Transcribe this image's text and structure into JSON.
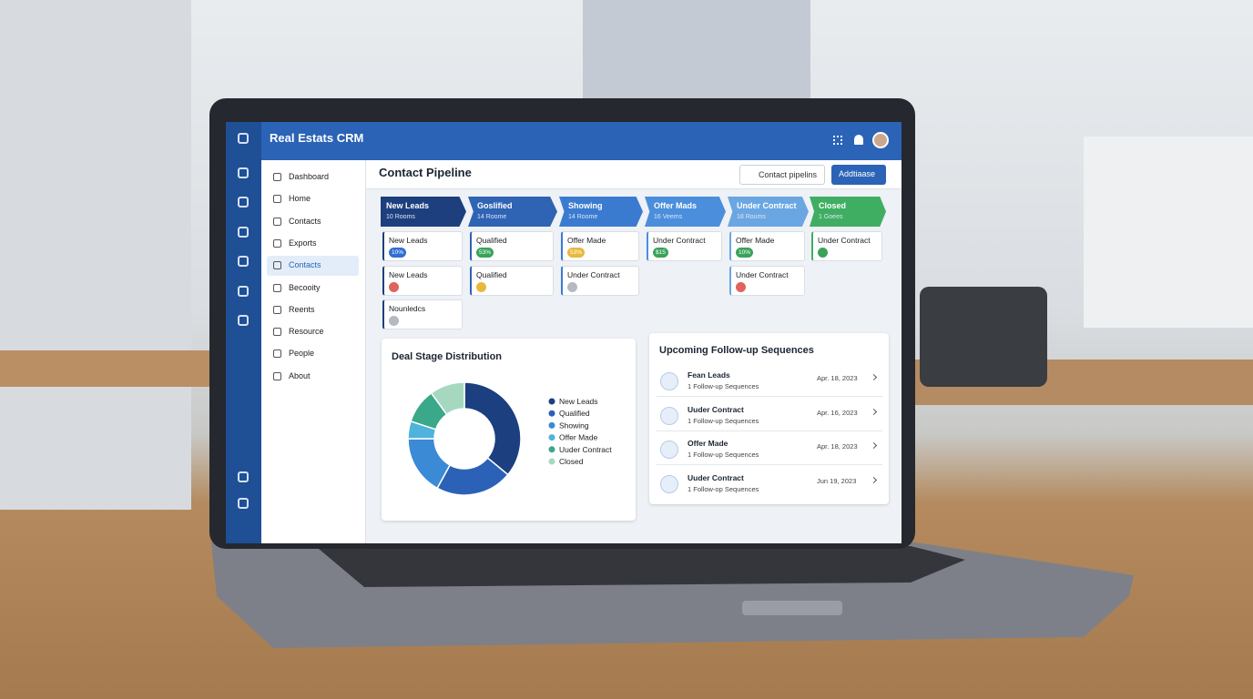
{
  "app": {
    "title": "Real Estats CRM"
  },
  "sidebar": {
    "items": [
      "Dashboard",
      "Home",
      "Contacts",
      "Exports",
      "Contacts",
      "Becooity",
      "Reents",
      "Resource",
      "People",
      "About"
    ],
    "active": 4
  },
  "page": {
    "title": "Contact Pipeline",
    "filter": "Contact pipelins",
    "action": "Addtiaase"
  },
  "pipeline": {
    "stages": [
      {
        "name": "New Leads",
        "count": "10 Rooms",
        "color": "#1d3f7e",
        "cards": [
          {
            "title": "New Leads",
            "badge": "10%",
            "badge_color": "#2f6fd1"
          },
          {
            "title": "New Leads",
            "badge_color": "#e0645c"
          },
          {
            "title": "Nounledcs",
            "badge_color": "#b5b9c0"
          }
        ]
      },
      {
        "name": "Goslified",
        "count": "14 Roome",
        "color": "#2f63b3",
        "cards": [
          {
            "title": "Qualified",
            "badge": "53%",
            "badge_color": "#3aa35a"
          },
          {
            "title": "Qualified",
            "badge_color": "#e6b93e"
          }
        ]
      },
      {
        "name": "Showing",
        "count": "14 Roome",
        "color": "#3a7bd0",
        "cards": [
          {
            "title": "Offer Made",
            "badge": "53%",
            "badge_color": "#e6b93e"
          },
          {
            "title": "Under Contract",
            "badge_color": "#b5b9c0"
          }
        ]
      },
      {
        "name": "Offer Mads",
        "count": "16 Veems",
        "color": "#4a8edc",
        "cards": [
          {
            "title": "Under Contract",
            "badge": "$15",
            "badge_color": "#3aa35a"
          }
        ]
      },
      {
        "name": "Under Contract",
        "count": "18 Roums",
        "color": "#6aa6e2",
        "cards": [
          {
            "title": "Offer Made",
            "badge": "10%",
            "badge_color": "#3aa35a"
          },
          {
            "title": "Under Contract",
            "badge_color": "#e0645c"
          }
        ]
      },
      {
        "name": "Closed",
        "count": "1 Goees",
        "color": "#3fae62",
        "cards": [
          {
            "title": "Under Contract",
            "badge_color": "#3aa35a"
          }
        ]
      }
    ]
  },
  "chart_data": {
    "type": "pie",
    "donut": true,
    "title": "Deal Stage Distribution",
    "categories": [
      "New Leads",
      "Qualified",
      "Showing",
      "Offer Made",
      "Uuder Contract",
      "Closed"
    ],
    "values": [
      36,
      22,
      17,
      5,
      10,
      10
    ],
    "colors": [
      "#1c3f80",
      "#2b62b8",
      "#3a8ad6",
      "#4fb3dd",
      "#3ba88a",
      "#a6d8c0"
    ]
  },
  "followups": {
    "title": "Upcoming Follow-up Sequences",
    "items": [
      {
        "title": "Fean Leads",
        "subtitle": "1 Follow-up Sequences",
        "date": "Apr. 18, 2023"
      },
      {
        "title": "Uuder Contract",
        "subtitle": "1 Follow-up Sequences",
        "date": "Apr. 16, 2023"
      },
      {
        "title": "Offer Made",
        "subtitle": "1 Follow-up Sequences",
        "date": "Apr. 18, 2023"
      },
      {
        "title": "Uuder Contract",
        "subtitle": "1 Follow-op Sequences",
        "date": "Jun 19, 2023"
      }
    ]
  }
}
